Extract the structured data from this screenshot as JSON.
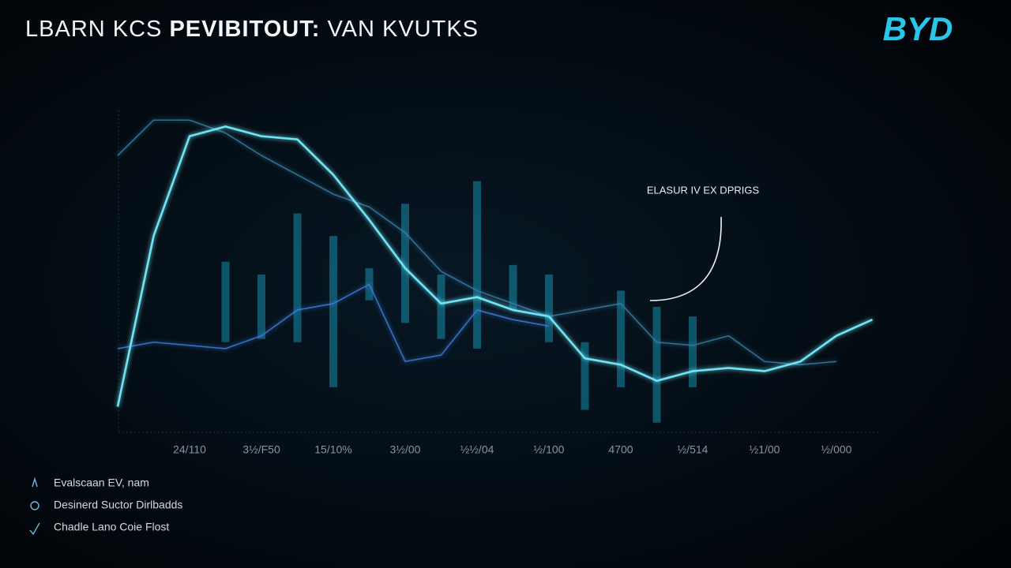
{
  "chart_data": {
    "type": "line",
    "title_parts": [
      "LBARN KCS",
      "PEVIBITOUT:",
      "VAN KVUTKS"
    ],
    "logo": "BYD",
    "annotation": "ELASUR IV EX DPRIGS",
    "categories": [
      null,
      null,
      "24/110",
      null,
      "3½/F50",
      null,
      "15/10%",
      null,
      "3½/00",
      null,
      "½½/04",
      null,
      "½/100",
      null,
      "4700",
      null,
      "½/514",
      null,
      "½1/00",
      null,
      "½/000",
      null
    ],
    "ylim": [
      0,
      100
    ],
    "series": [
      {
        "name": "Evalscaan EV, nam",
        "color": "#6fe3f5",
        "values": [
          8,
          61,
          92,
          95,
          92,
          91,
          80,
          66,
          51,
          40,
          42,
          38,
          36,
          23,
          21,
          16,
          19,
          20,
          19,
          22,
          30,
          35
        ]
      },
      {
        "name": "Desinerd Suctor Dirlbadds",
        "color": "#3a7fa8",
        "values": [
          86,
          97,
          97,
          93,
          86,
          80,
          74,
          70,
          62,
          50,
          44,
          40,
          36,
          38,
          40,
          28,
          27,
          30,
          22,
          21,
          22,
          null
        ]
      },
      {
        "name": "Chadle Lano Coie Flost",
        "color": "#3f7fe0",
        "values": [
          26,
          28,
          27,
          26,
          30,
          38,
          40,
          46,
          22,
          24,
          38,
          35,
          33,
          null,
          null,
          null,
          null,
          null,
          null,
          null,
          null,
          null
        ]
      }
    ],
    "ranges": {
      "color": "#1aa9c9",
      "low": [
        null,
        null,
        null,
        28,
        29,
        28,
        14,
        41,
        34,
        29,
        26,
        38,
        28,
        7,
        14,
        3,
        14,
        null,
        null,
        null,
        null,
        null
      ],
      "high": [
        null,
        null,
        null,
        53,
        49,
        68,
        61,
        51,
        71,
        49,
        78,
        52,
        49,
        28,
        44,
        39,
        36,
        null,
        null,
        null,
        null,
        null
      ]
    }
  }
}
